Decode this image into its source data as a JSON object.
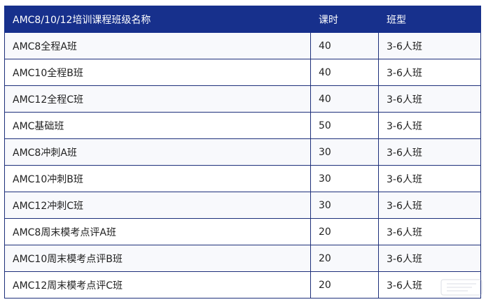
{
  "table": {
    "headers": [
      "AMC8/10/12培训课程班级名称",
      "课时",
      "班型"
    ],
    "rows": [
      [
        "AMC8全程A班",
        "40",
        "3-6人班"
      ],
      [
        "AMC10全程B班",
        "40",
        "3-6人班"
      ],
      [
        "AMC12全程C班",
        "40",
        "3-6人班"
      ],
      [
        "AMC基础班",
        "50",
        "3-6人班"
      ],
      [
        "AMC8冲刺A班",
        "30",
        "3-6人班"
      ],
      [
        "AMC10冲刺B班",
        "30",
        "3-6人班"
      ],
      [
        "AMC12冲刺C班",
        "30",
        "3-6人班"
      ],
      [
        "AMC8周末模考点评A班",
        "20",
        "3-6人班"
      ],
      [
        "AMC10周末模考点评B班",
        "20",
        "3-6人班"
      ],
      [
        "AMC12周末模考点评C班",
        "20",
        "3-6人班"
      ]
    ]
  },
  "colors": {
    "header_bg": "#17308c",
    "header_text": "#ffffff",
    "border": "#1d2f7a",
    "row_alt": "#f8f9fc"
  }
}
